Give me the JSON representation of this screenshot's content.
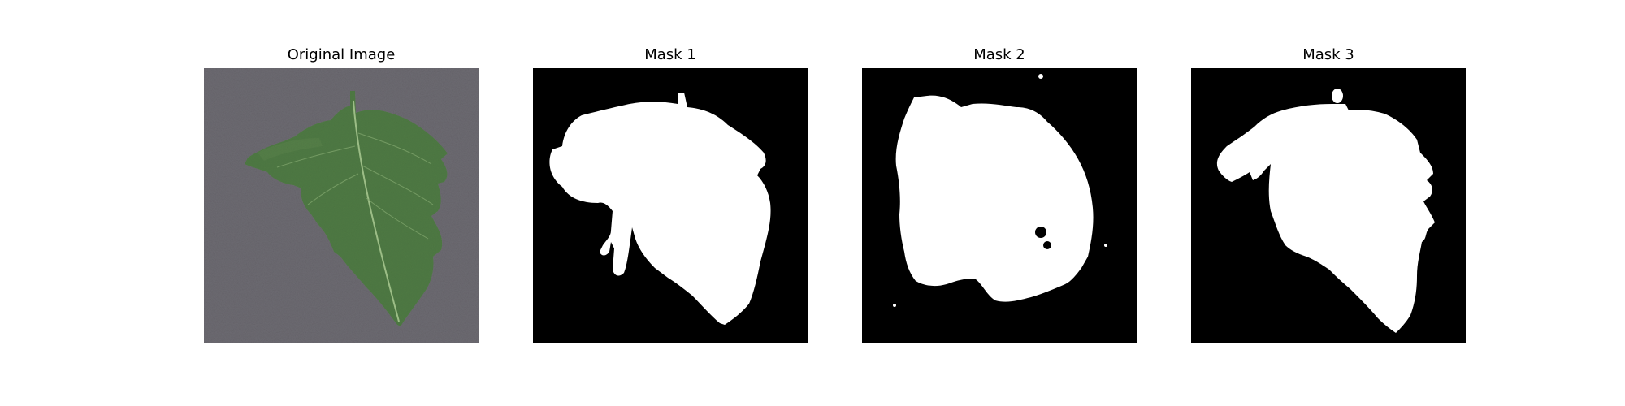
{
  "figure": {
    "panels": [
      {
        "title": "Original Image",
        "kind": "photo",
        "subject": "tomato leaf on gray textured background",
        "colors": {
          "background": "#6d6b72",
          "leaf": "#4f7a44",
          "vein": "#9cbd86"
        }
      },
      {
        "title": "Mask 1",
        "kind": "binary-mask",
        "colors": {
          "background": "#000000",
          "foreground": "#ffffff"
        }
      },
      {
        "title": "Mask 2",
        "kind": "binary-mask",
        "colors": {
          "background": "#000000",
          "foreground": "#ffffff"
        }
      },
      {
        "title": "Mask 3",
        "kind": "binary-mask",
        "colors": {
          "background": "#000000",
          "foreground": "#ffffff"
        }
      }
    ]
  }
}
